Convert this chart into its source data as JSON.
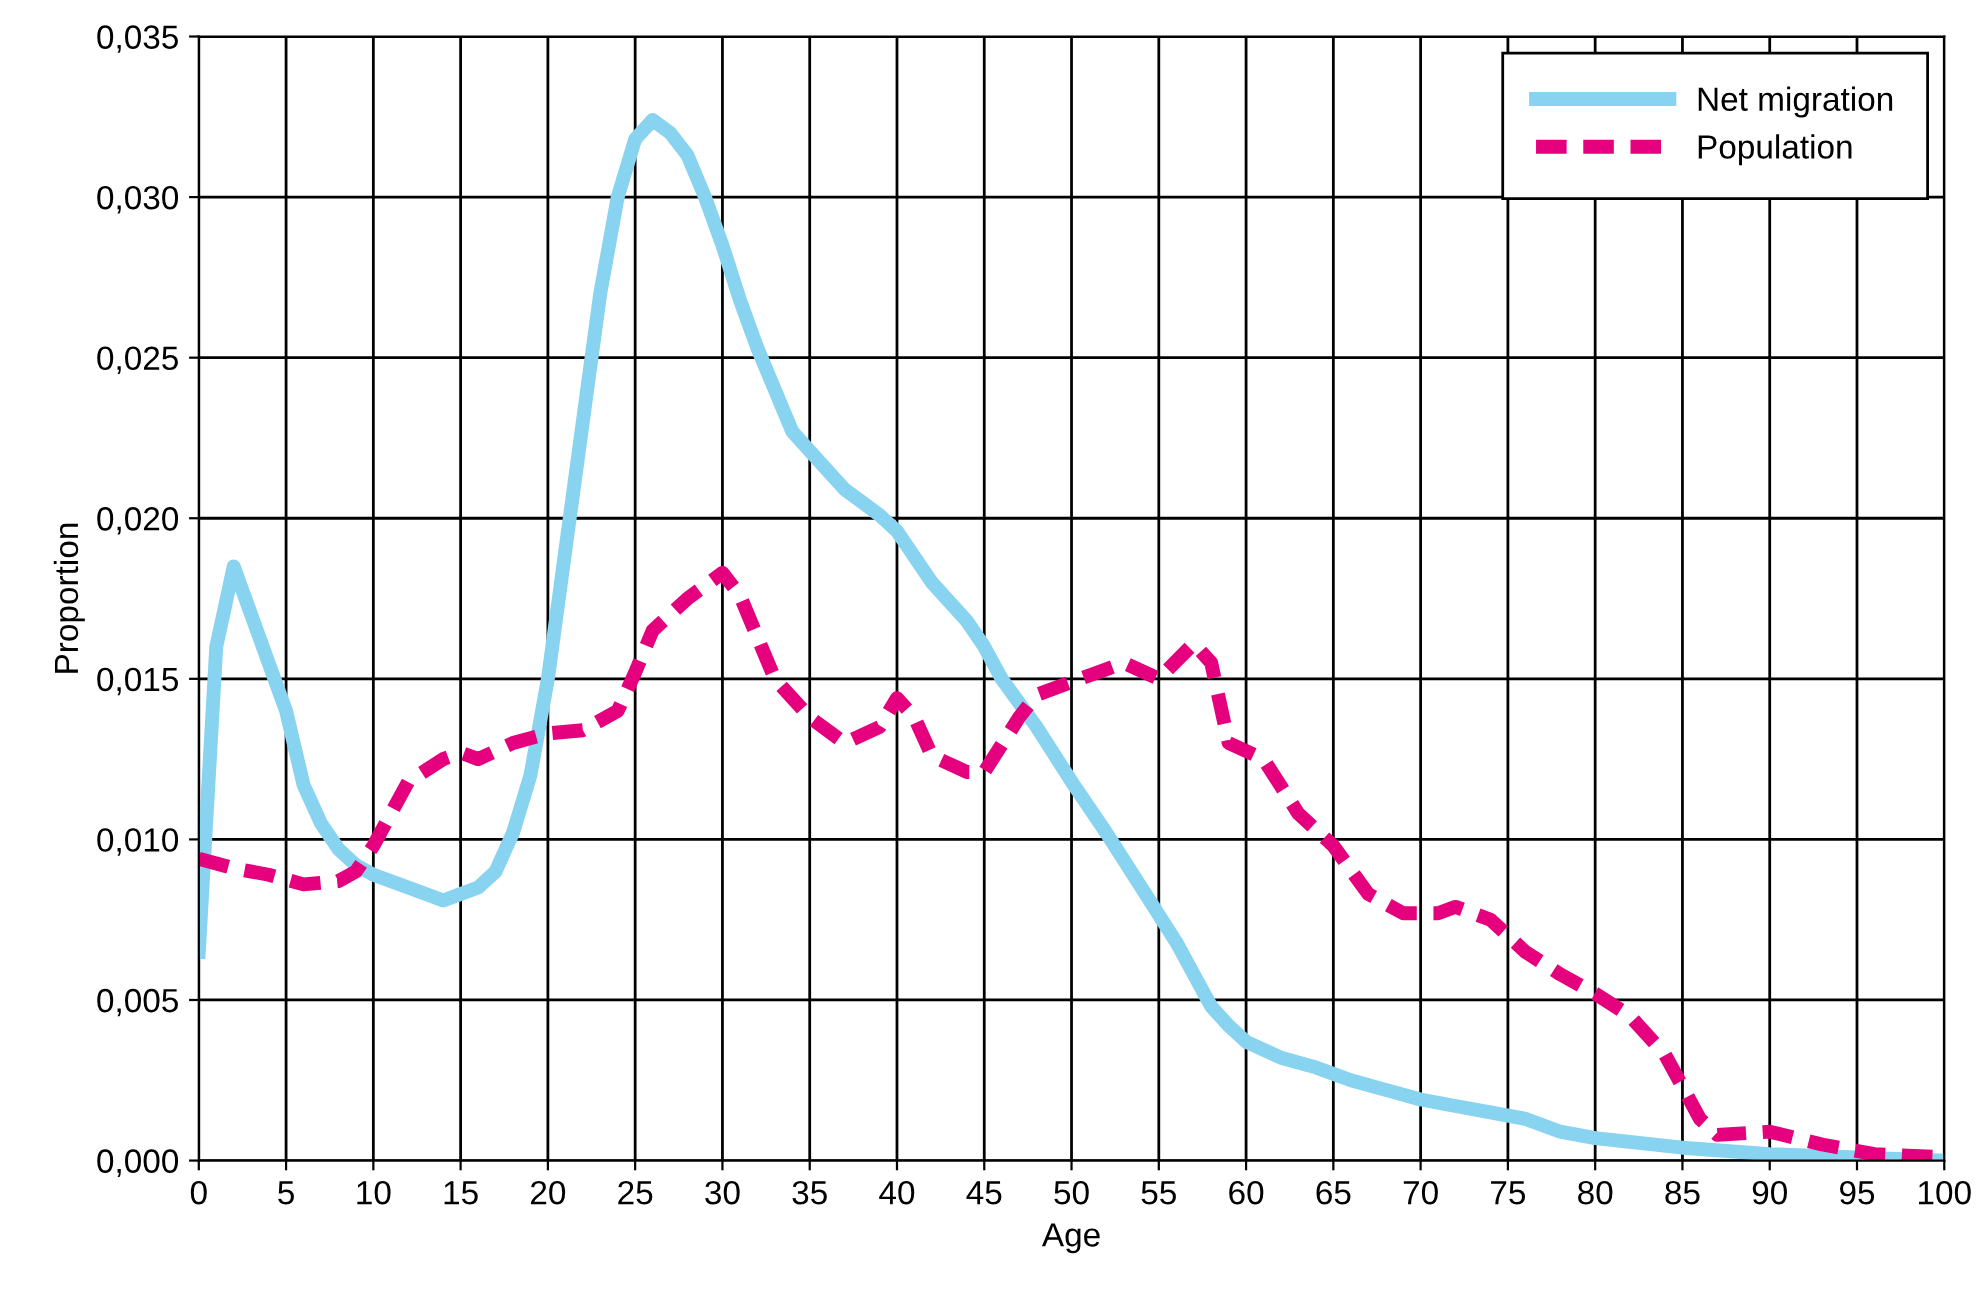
{
  "chart_data": {
    "type": "line",
    "xlabel": "Age",
    "ylabel": "Proportion",
    "xlim": [
      0,
      100
    ],
    "xticks": [
      0,
      5,
      10,
      15,
      20,
      25,
      30,
      35,
      40,
      45,
      50,
      55,
      60,
      65,
      70,
      75,
      80,
      85,
      90,
      95,
      100
    ],
    "ylim": [
      0,
      0.035
    ],
    "yticks": [
      {
        "value": 0,
        "label": "0,000"
      },
      {
        "value": 0.005,
        "label": "0,005"
      },
      {
        "value": 0.01,
        "label": "0,010"
      },
      {
        "value": 0.015,
        "label": "0,015"
      },
      {
        "value": 0.02,
        "label": "0,020"
      },
      {
        "value": 0.025,
        "label": "0,025"
      },
      {
        "value": 0.03,
        "label": "0,030"
      },
      {
        "value": 0.035,
        "label": "0,035"
      }
    ],
    "grid": true,
    "legend": "top right",
    "marker": "none",
    "series": [
      {
        "name": "Net migration",
        "color": "#87d3f0",
        "line_style": "solid",
        "x": [
          0,
          1,
          2,
          3,
          4,
          5,
          6,
          7,
          8,
          9,
          10,
          12,
          14,
          16,
          17,
          18,
          19,
          20,
          21,
          22,
          23,
          24,
          25,
          26,
          27,
          28,
          29,
          30,
          31,
          32,
          33,
          34,
          35,
          36,
          37,
          38,
          39,
          40,
          41,
          42,
          44,
          45,
          46,
          48,
          50,
          52,
          54,
          56,
          57,
          58,
          59,
          60,
          62,
          64,
          66,
          68,
          70,
          72,
          74,
          76,
          78,
          80,
          85,
          90,
          95,
          100
        ],
        "values": [
          0.0065,
          0.016,
          0.0185,
          0.017,
          0.0155,
          0.014,
          0.0117,
          0.0105,
          0.0097,
          0.0092,
          0.0089,
          0.0085,
          0.0081,
          0.0085,
          0.009,
          0.0102,
          0.012,
          0.015,
          0.019,
          0.023,
          0.027,
          0.03,
          0.0318,
          0.0324,
          0.032,
          0.0313,
          0.03,
          0.0285,
          0.0268,
          0.0253,
          0.024,
          0.0227,
          0.0221,
          0.0215,
          0.0209,
          0.0205,
          0.0201,
          0.0196,
          0.0188,
          0.018,
          0.0168,
          0.016,
          0.015,
          0.0135,
          0.0118,
          0.0102,
          0.0085,
          0.0068,
          0.0058,
          0.0048,
          0.0042,
          0.0037,
          0.0032,
          0.0029,
          0.0025,
          0.0022,
          0.0019,
          0.0017,
          0.0015,
          0.0013,
          0.0009,
          0.0007,
          0.0004,
          0.0002,
          0.0001,
          0
        ]
      },
      {
        "name": "Population",
        "color": "#e5007e",
        "line_style": "dashed",
        "x": [
          0,
          2,
          4,
          6,
          8,
          9,
          10,
          11,
          12,
          14,
          15,
          16,
          18,
          20,
          22,
          24,
          25,
          26,
          28,
          30,
          31,
          33,
          35,
          37,
          39,
          40,
          41,
          42,
          44,
          45,
          47,
          48,
          50,
          52,
          53,
          55,
          57,
          58,
          59,
          61,
          63,
          65,
          67,
          69,
          71,
          72,
          74,
          76,
          78,
          80,
          82,
          84,
          86,
          87,
          90,
          93,
          96,
          100
        ],
        "values": [
          0.0094,
          0.0091,
          0.0089,
          0.0086,
          0.0087,
          0.009,
          0.0098,
          0.0108,
          0.0118,
          0.0125,
          0.0127,
          0.0125,
          0.013,
          0.0133,
          0.0134,
          0.014,
          0.0152,
          0.0165,
          0.0175,
          0.0183,
          0.0176,
          0.015,
          0.0138,
          0.013,
          0.0135,
          0.0144,
          0.0138,
          0.0126,
          0.0121,
          0.0121,
          0.0138,
          0.0145,
          0.0149,
          0.0153,
          0.0155,
          0.015,
          0.0161,
          0.0155,
          0.013,
          0.0125,
          0.0108,
          0.0098,
          0.0083,
          0.0077,
          0.0077,
          0.0079,
          0.0075,
          0.0065,
          0.0058,
          0.0052,
          0.0045,
          0.0033,
          0.0013,
          0.0008,
          0.0009,
          0.0005,
          0.0002,
          0.0001
        ]
      }
    ]
  }
}
